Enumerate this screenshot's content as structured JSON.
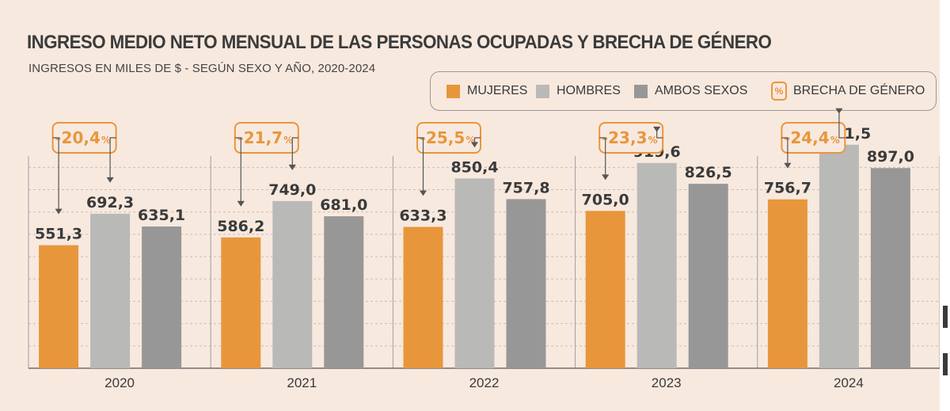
{
  "title": "INGRESO MEDIO NETO MENSUAL DE LAS PERSONAS OCUPADAS Y BRECHA DE GÉNERO",
  "subtitle": "INGRESOS EN MILES DE $ -  SEGÚN SEXO Y AÑO, 2020-2024",
  "legend": {
    "mujeres": "MUJERES",
    "hombres": "HOMBRES",
    "ambos": "AMBOS SEXOS",
    "brecha_icon": "%",
    "brecha": "BRECHA DE GÉNERO"
  },
  "colors": {
    "mujeres": "#e8963c",
    "hombres": "#b9b9b8",
    "ambos": "#979797",
    "brecha": "#e8963c",
    "background": "#f8e9df"
  },
  "chart_data": {
    "type": "bar",
    "categories": [
      "2020",
      "2021",
      "2022",
      "2023",
      "2024"
    ],
    "series": [
      {
        "name": "MUJERES",
        "values": [
          551.3,
          586.2,
          633.3,
          705.0,
          756.7
        ],
        "labels": [
          "551,3",
          "586,2",
          "633,3",
          "705,0",
          "756,7"
        ]
      },
      {
        "name": "HOMBRES",
        "values": [
          692.3,
          749.0,
          850.4,
          919.6,
          1001.5
        ],
        "labels": [
          "692,3",
          "749,0",
          "850,4",
          "919,6",
          "1.001,5"
        ]
      },
      {
        "name": "AMBOS SEXOS",
        "values": [
          635.1,
          681.0,
          757.8,
          826.5,
          897.0
        ],
        "labels": [
          "635,1",
          "681,0",
          "757,8",
          "826,5",
          "897,0"
        ]
      }
    ],
    "gender_gap": {
      "name": "BRECHA DE GÉNERO",
      "values": [
        -20.4,
        -21.7,
        -25.5,
        -23.3,
        -24.4
      ],
      "labels": [
        "-20,4",
        "-21,7",
        "-25,5",
        "-23,3",
        "-24,4"
      ],
      "unit": "%"
    },
    "ylim": [
      0,
      1100
    ],
    "grid": true
  }
}
